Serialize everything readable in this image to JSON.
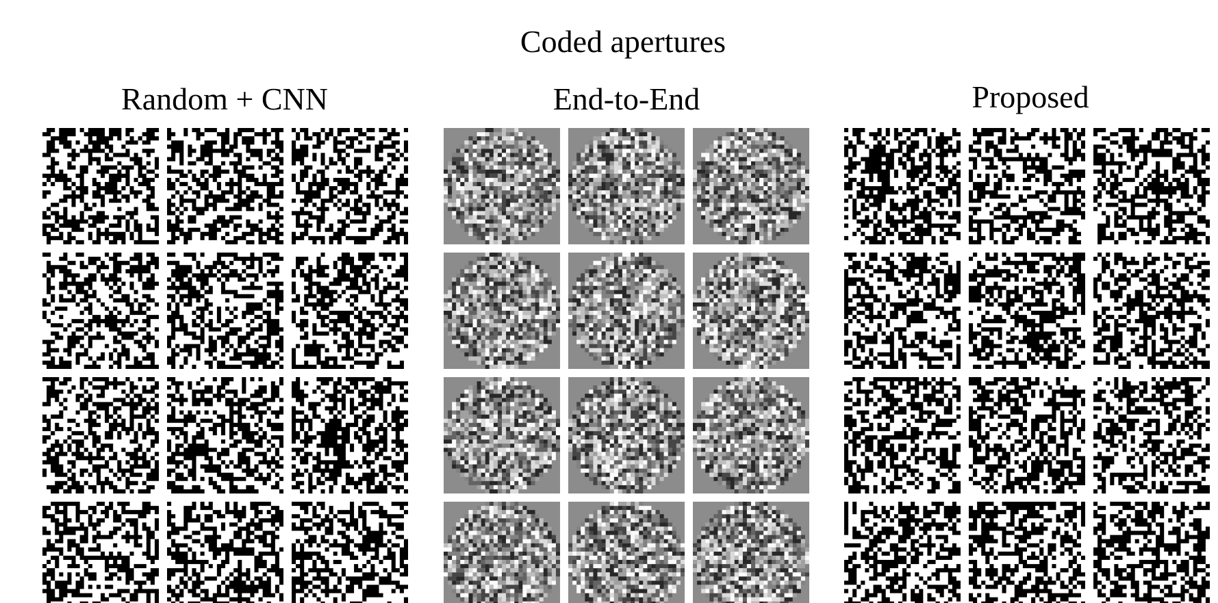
{
  "title": "Coded apertures",
  "panels": [
    {
      "title": "Random + CNN"
    },
    {
      "title": "End-to-End"
    },
    {
      "title": "Proposed"
    }
  ]
}
